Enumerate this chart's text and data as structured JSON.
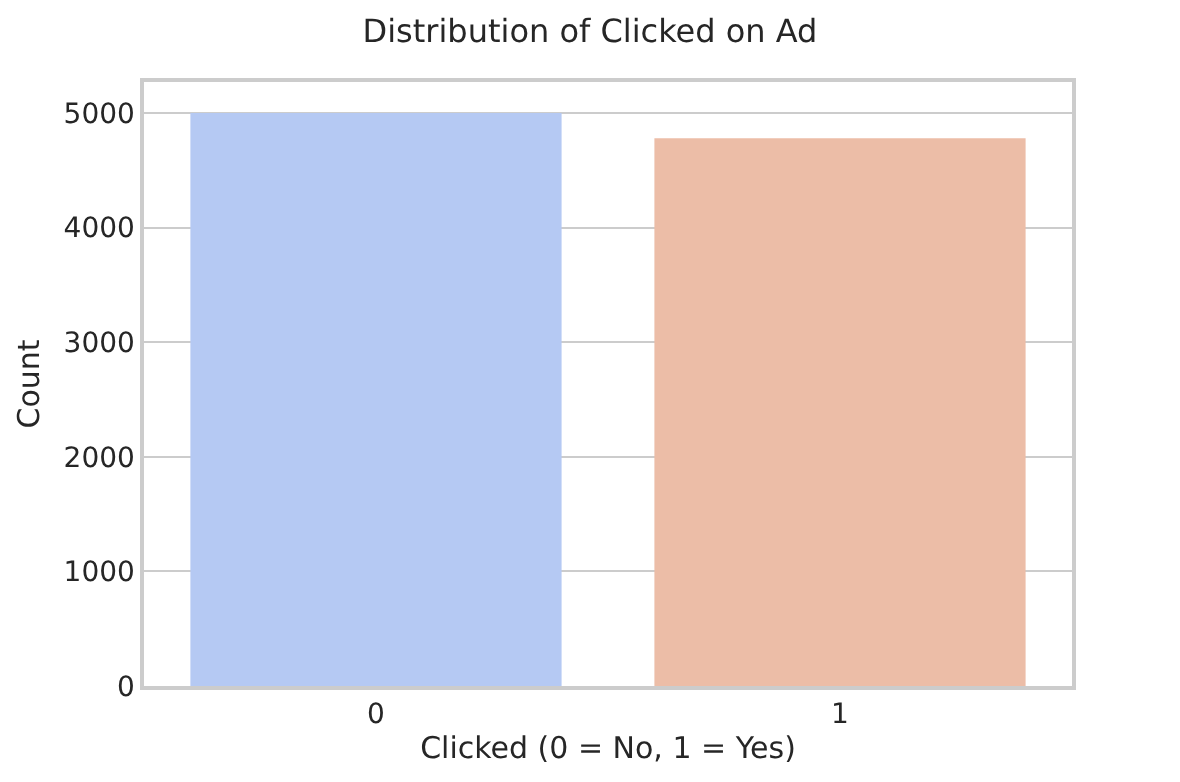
{
  "chart_data": {
    "type": "bar",
    "title": "Distribution of Clicked on Ad",
    "xlabel": "Clicked (0 = No, 1 = Yes)",
    "ylabel": "Count",
    "categories": [
      "0",
      "1"
    ],
    "values": [
      5000,
      4780
    ],
    "colors": [
      "#b5c9f3",
      "#ecbda7"
    ],
    "ylim": [
      0,
      5270
    ],
    "yticks": [
      0,
      1000,
      2000,
      3000,
      4000,
      5000
    ],
    "grid": "y"
  }
}
